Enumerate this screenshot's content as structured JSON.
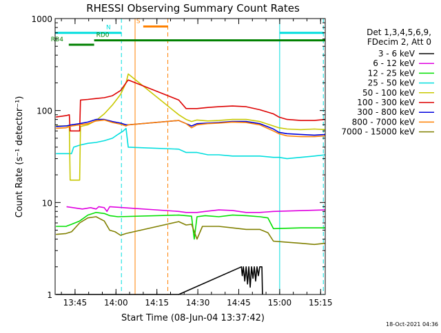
{
  "chart_data": {
    "type": "line",
    "title": "RHESSI Observing Summary Count Rates",
    "xlabel": "Start Time (08-Jun-04 13:37:42)",
    "ylabel": "Count Rate (s⁻¹ detector⁻¹)",
    "yscale": "log",
    "ylim": [
      1,
      1000
    ],
    "xlim_minutes_after_13_37_42": [
      0,
      99
    ],
    "x_ticks": [
      {
        "label": "13:45",
        "min": 7.3
      },
      {
        "label": "14:00",
        "min": 22.3
      },
      {
        "label": "14:15",
        "min": 37.3
      },
      {
        "label": "14:30",
        "min": 52.3
      },
      {
        "label": "14:45",
        "min": 67.3
      },
      {
        "label": "15:00",
        "min": 82.3
      },
      {
        "label": "15:15",
        "min": 97.3
      }
    ],
    "y_ticks": [
      {
        "label": "1",
        "value": 1
      },
      {
        "label": "10",
        "value": 10
      },
      {
        "label": "100",
        "value": 100
      },
      {
        "label": "1000",
        "value": 1000
      }
    ],
    "legend_header": [
      "Det 1,3,4,5,6,9,",
      "FDecim 2, Att 0"
    ],
    "legend_position": "right",
    "timestamp": "18-Oct-2021 04:36",
    "series": [
      {
        "name": "3 - 6 keV",
        "color": "#000000",
        "points": [
          [
            0.3,
            1
          ],
          [
            45.3,
            1
          ],
          [
            68.3,
            2
          ],
          [
            68.6,
            1.6
          ],
          [
            69,
            2
          ],
          [
            69.5,
            1.4
          ],
          [
            70,
            2
          ],
          [
            70.5,
            1.3
          ],
          [
            71,
            2
          ],
          [
            71.5,
            1.2
          ],
          [
            72,
            2
          ],
          [
            72.5,
            1.5
          ],
          [
            73,
            2
          ],
          [
            73.5,
            1.4
          ],
          [
            74,
            2
          ],
          [
            74.5,
            1.6
          ],
          [
            75,
            2
          ],
          [
            75.8,
            2
          ],
          [
            76,
            1
          ]
        ]
      },
      {
        "name": "6 - 12 keV",
        "color": "#e000e0",
        "points": [
          [
            4.2,
            9
          ],
          [
            10,
            8.5
          ],
          [
            13,
            8.8
          ],
          [
            15,
            8.5
          ],
          [
            16,
            9
          ],
          [
            18,
            8.8
          ],
          [
            19,
            8
          ],
          [
            20,
            9
          ],
          [
            25,
            8.8
          ],
          [
            45.3,
            8
          ],
          [
            48,
            7.8
          ],
          [
            52,
            7.8
          ],
          [
            55,
            8
          ],
          [
            60,
            8.3
          ],
          [
            65,
            8.2
          ],
          [
            70,
            7.8
          ],
          [
            75,
            7.8
          ],
          [
            80,
            8
          ],
          [
            99,
            8.3
          ]
        ]
      },
      {
        "name": "12 - 25 keV",
        "color": "#00e000",
        "points": [
          [
            0.3,
            5.5
          ],
          [
            4,
            5.5
          ],
          [
            6,
            5.8
          ],
          [
            9,
            6.3
          ],
          [
            12,
            7.3
          ],
          [
            15,
            7.8
          ],
          [
            18,
            7.6
          ],
          [
            20,
            7.2
          ],
          [
            23,
            7
          ],
          [
            45.3,
            7.3
          ],
          [
            50,
            7.1
          ],
          [
            51,
            4
          ],
          [
            52,
            7
          ],
          [
            55,
            7.2
          ],
          [
            60,
            7
          ],
          [
            65,
            7.3
          ],
          [
            70,
            7.2
          ],
          [
            75,
            7
          ],
          [
            78,
            6.8
          ],
          [
            80,
            5.2
          ],
          [
            90,
            5.3
          ],
          [
            99,
            5.3
          ]
        ]
      },
      {
        "name": "25 - 50 keV",
        "color": "#00dede",
        "points": [
          [
            0.3,
            34
          ],
          [
            4,
            34
          ],
          [
            6,
            34
          ],
          [
            6.8,
            40
          ],
          [
            9,
            42
          ],
          [
            12,
            44
          ],
          [
            15,
            45
          ],
          [
            18,
            47
          ],
          [
            21,
            50
          ],
          [
            23,
            55
          ],
          [
            25,
            60
          ],
          [
            26,
            64
          ],
          [
            26.8,
            40
          ],
          [
            45.3,
            38
          ],
          [
            48,
            35
          ],
          [
            52,
            35
          ],
          [
            56,
            33
          ],
          [
            60,
            33
          ],
          [
            65,
            32
          ],
          [
            70,
            32
          ],
          [
            75,
            32
          ],
          [
            80,
            31
          ],
          [
            82,
            31
          ],
          [
            85,
            30
          ],
          [
            90,
            31
          ],
          [
            95,
            32
          ],
          [
            99,
            33
          ]
        ]
      },
      {
        "name": "50 - 100 keV",
        "color": "#c8c800",
        "points": [
          [
            0.3,
            68
          ],
          [
            4,
            68
          ],
          [
            5.2,
            68
          ],
          [
            5.5,
            17.5
          ],
          [
            9,
            17.5
          ],
          [
            9.3,
            67
          ],
          [
            12,
            70
          ],
          [
            15,
            78
          ],
          [
            18,
            92
          ],
          [
            21,
            115
          ],
          [
            24,
            150
          ],
          [
            26,
            200
          ],
          [
            26.8,
            250
          ],
          [
            45.3,
            90
          ],
          [
            48,
            80
          ],
          [
            50,
            76
          ],
          [
            52,
            79
          ],
          [
            56,
            77
          ],
          [
            60,
            78
          ],
          [
            65,
            80
          ],
          [
            70,
            80
          ],
          [
            75,
            76
          ],
          [
            80,
            68
          ],
          [
            82,
            65
          ],
          [
            85,
            63
          ],
          [
            90,
            62
          ],
          [
            95,
            63
          ],
          [
            99,
            62
          ]
        ]
      },
      {
        "name": "100 - 300 keV",
        "color": "#dd0000",
        "points": [
          [
            0.3,
            85
          ],
          [
            4,
            88
          ],
          [
            5.2,
            90
          ],
          [
            5.5,
            60
          ],
          [
            9,
            60
          ],
          [
            9.3,
            130
          ],
          [
            12,
            132
          ],
          [
            15,
            135
          ],
          [
            18,
            138
          ],
          [
            21,
            145
          ],
          [
            24,
            165
          ],
          [
            26,
            200
          ],
          [
            26.8,
            215
          ],
          [
            45.3,
            130
          ],
          [
            48,
            105
          ],
          [
            52,
            105
          ],
          [
            56,
            108
          ],
          [
            60,
            110
          ],
          [
            65,
            112
          ],
          [
            70,
            110
          ],
          [
            75,
            102
          ],
          [
            80,
            92
          ],
          [
            82,
            85
          ],
          [
            85,
            80
          ],
          [
            90,
            78
          ],
          [
            95,
            78
          ],
          [
            99,
            80
          ]
        ]
      },
      {
        "name": "300 - 800 keV",
        "color": "#0000dd",
        "points": [
          [
            0.3,
            67
          ],
          [
            4,
            68
          ],
          [
            6,
            70
          ],
          [
            9,
            72
          ],
          [
            12,
            75
          ],
          [
            15,
            80
          ],
          [
            18,
            80
          ],
          [
            21,
            76
          ],
          [
            24,
            73
          ],
          [
            26,
            70
          ],
          [
            26.8,
            70
          ],
          [
            45.3,
            78
          ],
          [
            48,
            72
          ],
          [
            50,
            68
          ],
          [
            52,
            72
          ],
          [
            56,
            73
          ],
          [
            60,
            74
          ],
          [
            65,
            76
          ],
          [
            70,
            76
          ],
          [
            75,
            72
          ],
          [
            80,
            63
          ],
          [
            82,
            58
          ],
          [
            85,
            56
          ],
          [
            90,
            55
          ],
          [
            95,
            54
          ],
          [
            99,
            55
          ]
        ]
      },
      {
        "name": "800 - 7000 keV",
        "color": "#ff8000",
        "points": [
          [
            0.3,
            64
          ],
          [
            4,
            65
          ],
          [
            6,
            68
          ],
          [
            9,
            70
          ],
          [
            12,
            72
          ],
          [
            15,
            77
          ],
          [
            18,
            79
          ],
          [
            21,
            74
          ],
          [
            24,
            71
          ],
          [
            26,
            68
          ],
          [
            26.8,
            70
          ],
          [
            45.3,
            78
          ],
          [
            48,
            72
          ],
          [
            50,
            65
          ],
          [
            52,
            70
          ],
          [
            56,
            72
          ],
          [
            60,
            73
          ],
          [
            65,
            75
          ],
          [
            70,
            74
          ],
          [
            75,
            70
          ],
          [
            80,
            60
          ],
          [
            82,
            56
          ],
          [
            85,
            53
          ],
          [
            90,
            52
          ],
          [
            95,
            52
          ],
          [
            99,
            53
          ]
        ]
      },
      {
        "name": "7000 - 15000 keV",
        "color": "#808000",
        "points": [
          [
            0.3,
            4.5
          ],
          [
            4,
            4.6
          ],
          [
            6,
            4.8
          ],
          [
            9,
            6
          ],
          [
            12,
            6.8
          ],
          [
            15,
            7
          ],
          [
            18,
            6.3
          ],
          [
            20,
            5
          ],
          [
            22,
            4.8
          ],
          [
            24,
            4.4
          ],
          [
            26,
            4.6
          ],
          [
            45.3,
            6.2
          ],
          [
            48,
            5.7
          ],
          [
            50,
            5.8
          ],
          [
            52,
            4
          ],
          [
            54,
            5.5
          ],
          [
            60,
            5.5
          ],
          [
            65,
            5.3
          ],
          [
            70,
            5.1
          ],
          [
            75,
            5.1
          ],
          [
            78,
            4.7
          ],
          [
            80,
            3.8
          ],
          [
            85,
            3.7
          ],
          [
            90,
            3.6
          ],
          [
            95,
            3.5
          ],
          [
            99,
            3.6
          ]
        ]
      }
    ],
    "vertical_markers": [
      {
        "min": 24.3,
        "color": "#00dede",
        "style": "dashed"
      },
      {
        "min": 29.3,
        "color": "#ff8000",
        "style": "solid"
      },
      {
        "min": 41.3,
        "color": "#ff8000",
        "style": "dashed"
      },
      {
        "min": 82.3,
        "color": "#00dede",
        "style": "solid"
      },
      {
        "min": 98.3,
        "color": "#00dede",
        "style": "dashed"
      }
    ],
    "flag_bars": [
      {
        "label": "N",
        "color": "#00dede",
        "start_min": 0,
        "end_min": 24.3,
        "value": 700
      },
      {
        "label": "",
        "color": "#00dede",
        "start_min": 82.3,
        "end_min": 98.5,
        "value": 700
      },
      {
        "label": "S",
        "color": "#ff8000",
        "start_min": 32.3,
        "end_min": 41.3,
        "value": 820
      },
      {
        "label": "RD0",
        "color": "#008000",
        "start_min": 14.3,
        "end_min": 99,
        "value": 580
      },
      {
        "label": "RB4",
        "color": "#008000",
        "start_min": 5,
        "end_min": 14.3,
        "value": 520
      }
    ]
  }
}
